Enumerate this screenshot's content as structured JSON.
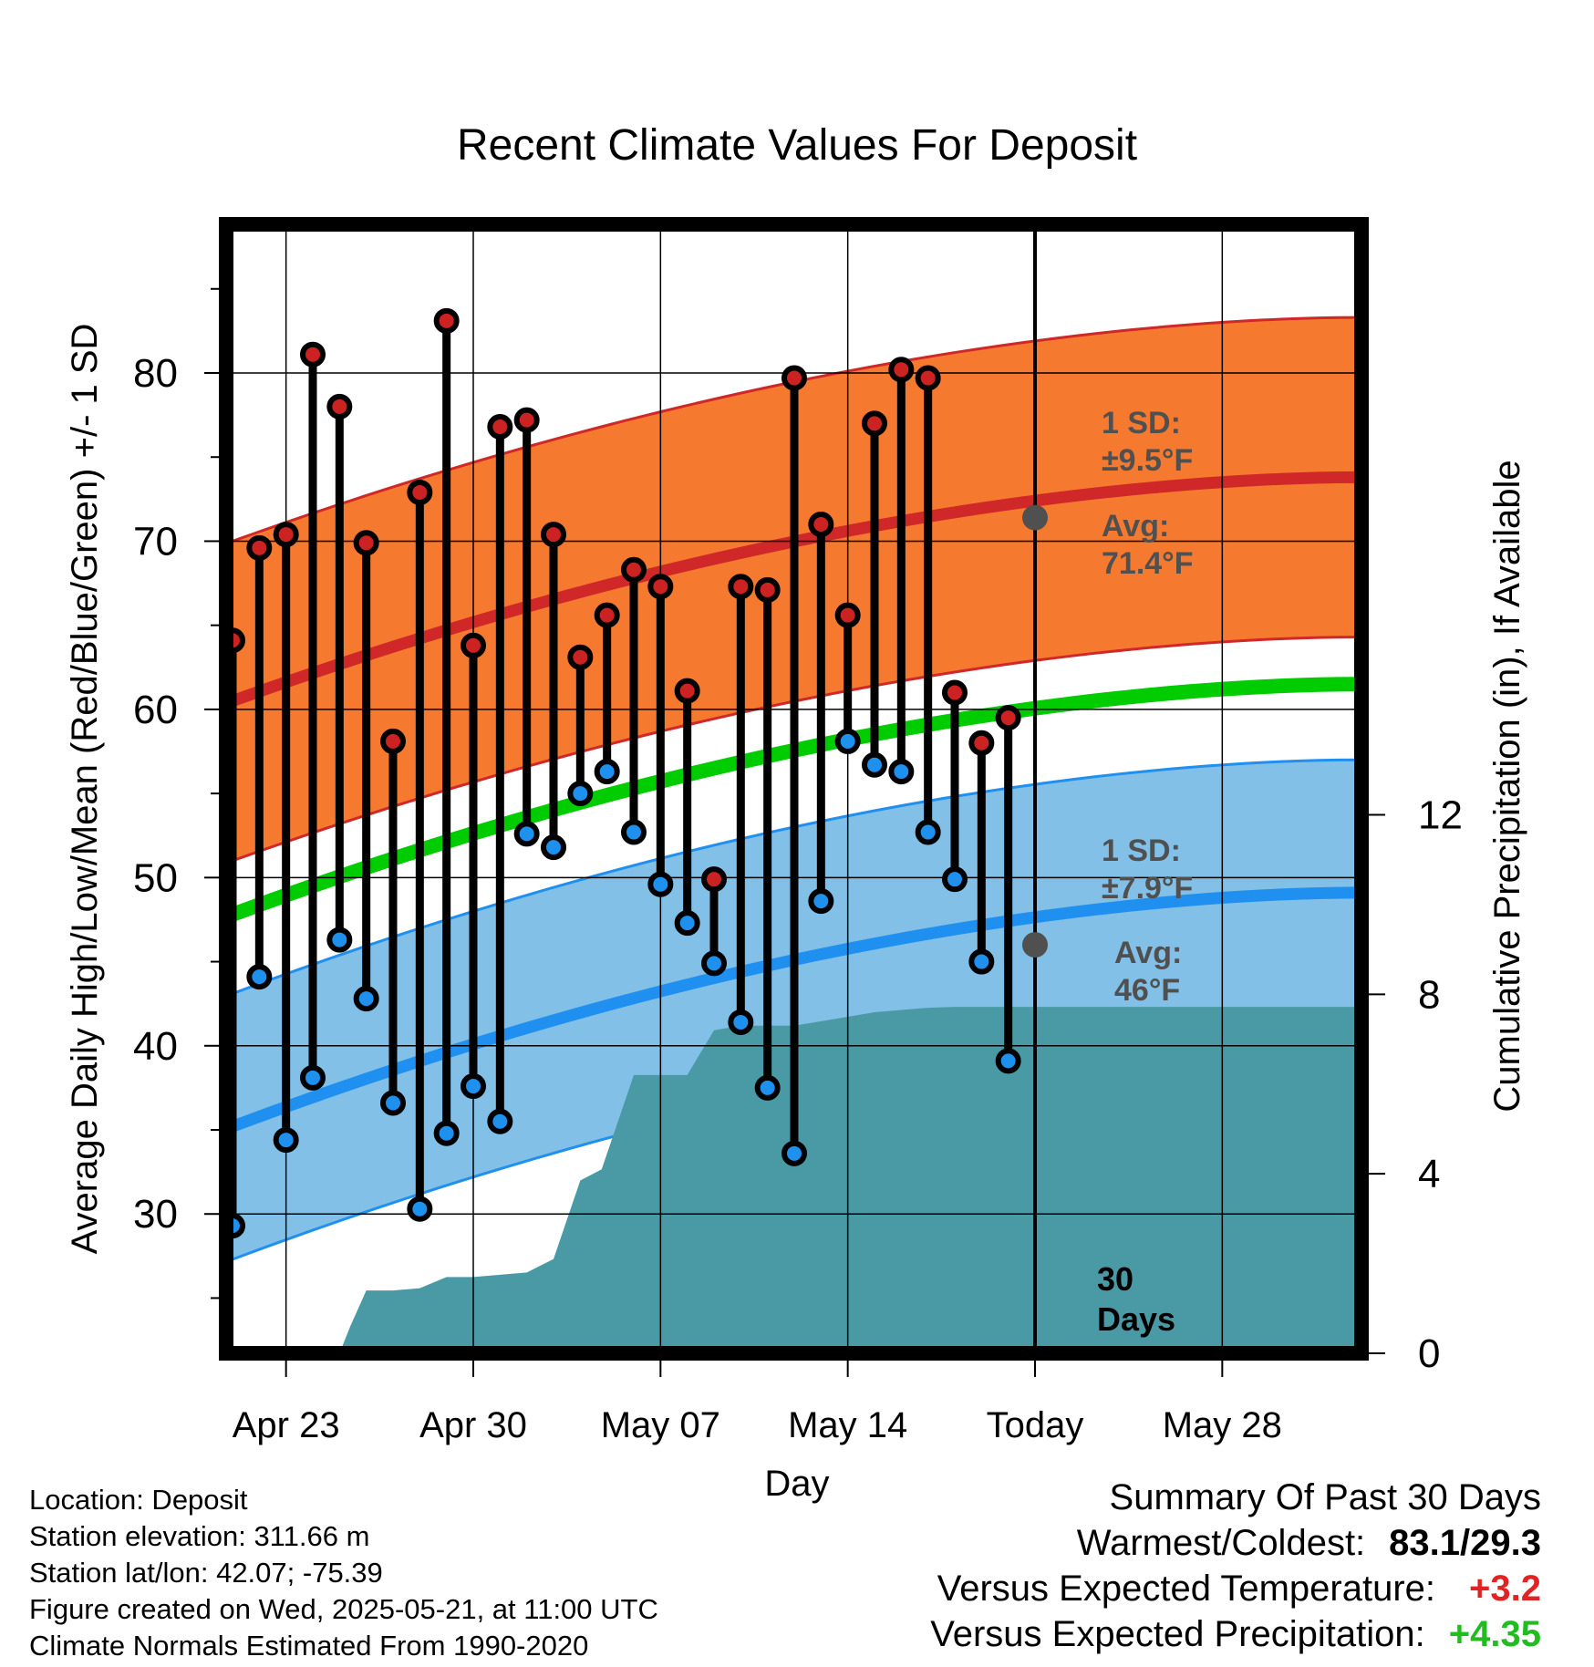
{
  "chart_data": {
    "type": "line",
    "title": "Recent Climate Values For Deposit",
    "xlabel": "Day",
    "ylabel": "Average Daily High/Low/Mean (Red/Blue/Green) +/- 1 SD",
    "y2label": "Cumulative Precipitation (in), If Available",
    "x_range_days": [
      -30,
      12
    ],
    "ylim": [
      21.5,
      89
    ],
    "y2lim": [
      0,
      24
    ],
    "y_ticks": [
      30,
      40,
      50,
      60,
      70,
      80
    ],
    "y2_ticks": [
      0,
      4,
      8,
      12
    ],
    "x_tick_labels": [
      {
        "day": -28,
        "label": "Apr 23"
      },
      {
        "day": -21,
        "label": "Apr 30"
      },
      {
        "day": -14,
        "label": "May 07"
      },
      {
        "day": -7,
        "label": "May 14"
      },
      {
        "day": 0,
        "label": "Today"
      },
      {
        "day": 7,
        "label": "May 28"
      }
    ],
    "grid": true,
    "today_label": "30\nDays",
    "days": [
      -30,
      -29,
      -28,
      -27,
      -26,
      -25,
      -24,
      -23,
      -22,
      -21,
      -20,
      -19,
      -18,
      -17,
      -16,
      -15,
      -14,
      -13,
      -12,
      -11,
      -10,
      -9,
      -8,
      -7,
      -6,
      -5,
      -4,
      -3,
      -2,
      -1
    ],
    "highs": [
      64.1,
      69.6,
      70.4,
      81.1,
      78.0,
      69.9,
      58.1,
      72.9,
      83.1,
      63.8,
      76.8,
      77.2,
      70.4,
      63.1,
      65.6,
      68.3,
      67.3,
      61.1,
      49.9,
      67.3,
      67.1,
      79.7,
      71.0,
      65.6,
      77.0,
      80.2,
      79.7,
      61.0,
      58.0,
      59.5
    ],
    "lows": [
      29.3,
      44.1,
      34.4,
      38.1,
      46.3,
      42.8,
      36.6,
      30.3,
      34.8,
      37.6,
      35.5,
      52.6,
      51.8,
      55.0,
      56.3,
      52.7,
      49.6,
      47.3,
      44.9,
      41.4,
      37.5,
      33.6,
      48.6,
      58.1,
      56.7,
      56.3,
      52.7,
      49.9,
      45.0,
      39.1
    ],
    "normal_high": {
      "start": 60.5,
      "today": 71.4,
      "end": 73.8,
      "sd": 9.5
    },
    "normal_low": {
      "start": 35.2,
      "today": 46.0,
      "end": 49.1,
      "sd": 7.9
    },
    "normal_mean": {
      "start": 47.8,
      "end": 61.5
    },
    "precip_cumulative": [
      [
        -30,
        0
      ],
      [
        -26,
        0
      ],
      [
        -25.6,
        0.6
      ],
      [
        -25,
        1.4
      ],
      [
        -24,
        1.4
      ],
      [
        -23,
        1.45
      ],
      [
        -22,
        1.7
      ],
      [
        -21,
        1.7
      ],
      [
        -20,
        1.75
      ],
      [
        -19,
        1.8
      ],
      [
        -18,
        2.1
      ],
      [
        -17,
        3.85
      ],
      [
        -16.2,
        4.1
      ],
      [
        -15,
        6.2
      ],
      [
        -14,
        6.2
      ],
      [
        -13,
        6.2
      ],
      [
        -12,
        7.2
      ],
      [
        -11,
        7.3
      ],
      [
        -10,
        7.3
      ],
      [
        -9,
        7.3
      ],
      [
        -8,
        7.4
      ],
      [
        -7,
        7.5
      ],
      [
        -6,
        7.6
      ],
      [
        -5,
        7.65
      ],
      [
        -4,
        7.7
      ],
      [
        -3,
        7.72
      ],
      [
        -1,
        7.72
      ],
      [
        0,
        7.72
      ],
      [
        12,
        7.72
      ]
    ],
    "annotations": {
      "high_sd": {
        "line1": "1 SD:",
        "line2": "±9.5°F"
      },
      "high_avg": {
        "line1": "Avg:",
        "line2": "71.4°F"
      },
      "low_sd": {
        "line1": "1 SD:",
        "line2": "±7.9°F"
      },
      "low_avg": {
        "line1": "Avg:",
        "line2": "46°F"
      }
    },
    "colors": {
      "high_band": "#f57a30",
      "high_line": "#d02828",
      "low_band": "#82c0e8",
      "low_line": "#2090f0",
      "mean_line": "#00cc00",
      "precip": "#4a9aa5",
      "high_dot": "#cc2222",
      "low_dot": "#1e90ee",
      "annotation": "#505050"
    }
  },
  "info": {
    "location": "Location: Deposit",
    "elevation": "Station elevation: 311.66 m",
    "latlon": "Station lat/lon: 42.07; -75.39",
    "created": "Figure created on Wed, 2025-05-21, at 11:00 UTC",
    "normals": "Climate Normals Estimated From 1990-2020"
  },
  "summary": {
    "heading": "Summary Of Past 30 Days",
    "warm_label": "Warmest/Coldest:",
    "warm_value": "83.1/29.3",
    "temp_label": "Versus Expected Temperature:",
    "temp_value": "+3.2",
    "precip_label": "Versus Expected Precipitation:",
    "precip_value": "+4.35"
  }
}
